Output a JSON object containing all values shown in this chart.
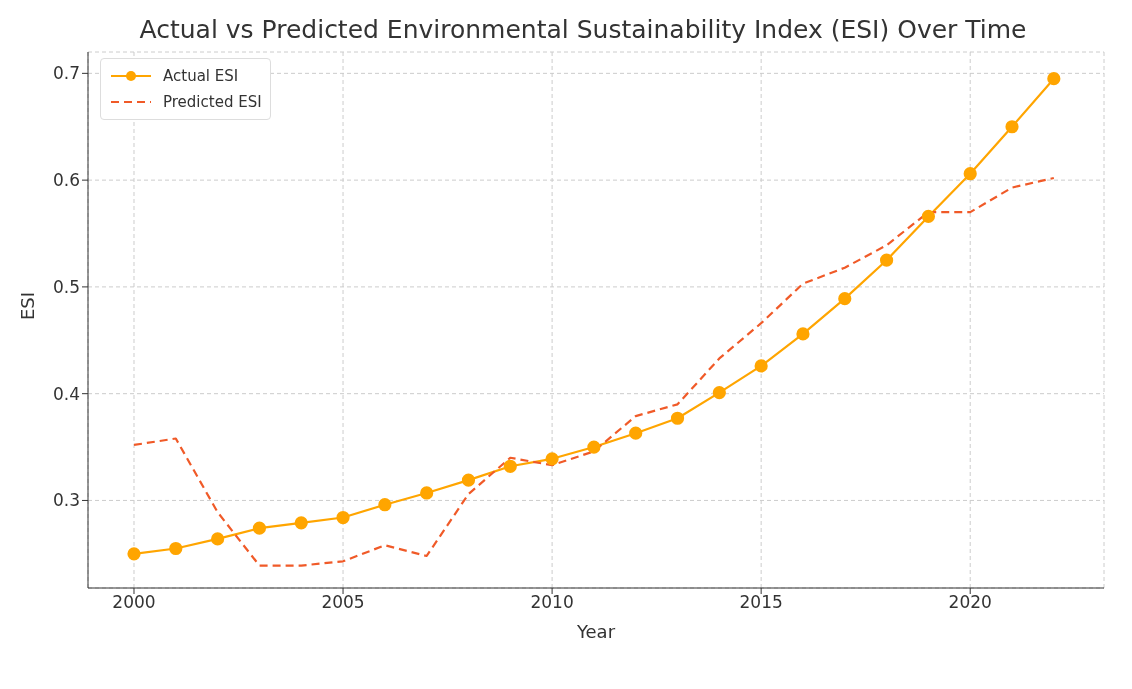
{
  "chart_data": {
    "type": "line",
    "title": "Actual vs Predicted Environmental Sustainability Index (ESI) Over Time",
    "xlabel": "Year",
    "ylabel": "ESI",
    "x": [
      2000,
      2001,
      2002,
      2003,
      2004,
      2005,
      2006,
      2007,
      2008,
      2009,
      2010,
      2011,
      2012,
      2013,
      2014,
      2015,
      2016,
      2017,
      2018,
      2019,
      2020,
      2021,
      2022
    ],
    "series": [
      {
        "name": "Actual ESI",
        "color": "#ffa500",
        "marker": "circle",
        "line_style": "solid",
        "values": [
          0.25,
          0.255,
          0.264,
          0.274,
          0.279,
          0.284,
          0.296,
          0.307,
          0.319,
          0.332,
          0.339,
          0.35,
          0.363,
          0.377,
          0.401,
          0.426,
          0.456,
          0.489,
          0.525,
          0.566,
          0.606,
          0.65,
          0.695
        ]
      },
      {
        "name": "Predicted ESI",
        "color": "#f05a28",
        "marker": "none",
        "line_style": "dashed",
        "values": [
          0.352,
          0.358,
          0.289,
          0.239,
          0.239,
          0.243,
          0.258,
          0.248,
          0.306,
          0.34,
          0.333,
          0.346,
          0.379,
          0.39,
          0.433,
          0.466,
          0.503,
          0.518,
          0.539,
          0.57,
          0.57,
          0.593,
          0.602
        ]
      }
    ],
    "xlim": [
      1998.9,
      2023.2
    ],
    "xticks": [
      2000,
      2005,
      2010,
      2015,
      2020
    ],
    "ylim": [
      0.218,
      0.72
    ],
    "yticks": [
      0.3,
      0.4,
      0.5,
      0.6,
      0.7
    ],
    "grid": true,
    "legend": "top left"
  }
}
